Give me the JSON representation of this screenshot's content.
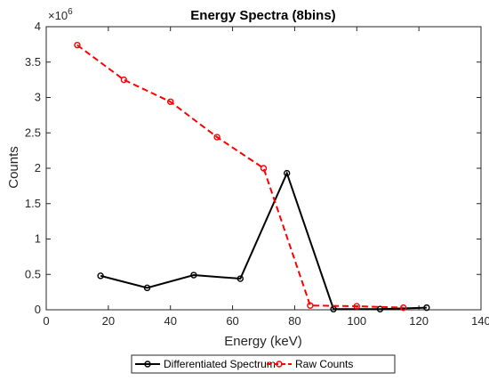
{
  "chart_data": {
    "type": "line",
    "title": "Energy Spectra (8bins)",
    "xlabel": "Energy (keV)",
    "ylabel": "Counts",
    "y_exponent_label": "×10",
    "y_exponent_power": "6",
    "xlim": [
      0,
      140
    ],
    "ylim": [
      0,
      4
    ],
    "xticks": [
      0,
      20,
      40,
      60,
      80,
      100,
      120,
      140
    ],
    "yticks": [
      0,
      0.5,
      1,
      1.5,
      2,
      2.5,
      3,
      3.5,
      4
    ],
    "xtick_labels": [
      "0",
      "20",
      "40",
      "60",
      "80",
      "100",
      "120",
      "140"
    ],
    "ytick_labels": [
      "0",
      "0.5",
      "1",
      "1.5",
      "2",
      "2.5",
      "3",
      "3.5",
      "4"
    ],
    "grid": false,
    "legend_position": "bottom-outside",
    "series": [
      {
        "name": "Differentiated Spectrum",
        "color": "#000000",
        "line_style": "solid",
        "marker": "circle",
        "x": [
          17.5,
          32.5,
          47.5,
          62.5,
          77.5,
          92.5,
          107.5,
          122.5
        ],
        "y": [
          0.48,
          0.31,
          0.49,
          0.44,
          1.93,
          0.01,
          0.01,
          0.03
        ]
      },
      {
        "name": "Raw Counts",
        "color": "#ff0000",
        "line_style": "dashed",
        "marker": "circle",
        "x": [
          10,
          25,
          40,
          55,
          70,
          85,
          100,
          115
        ],
        "y": [
          3.74,
          3.25,
          2.94,
          2.44,
          2.0,
          0.06,
          0.05,
          0.03
        ]
      }
    ]
  }
}
